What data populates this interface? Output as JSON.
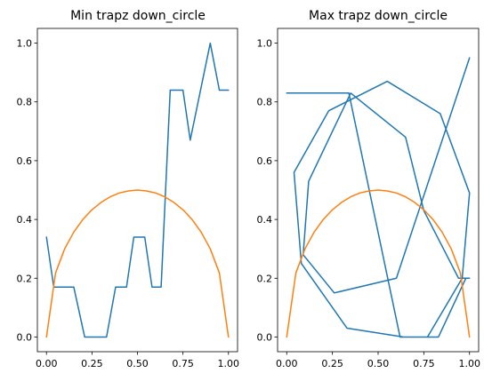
{
  "chart_data": [
    {
      "type": "line",
      "title": "Min trapz down_circle",
      "xlabel": "",
      "ylabel": "",
      "xlim": [
        -0.05,
        1.05
      ],
      "ylim": [
        -0.05,
        1.05
      ],
      "xticks": [
        "0.00",
        "0.25",
        "0.50",
        "0.75",
        "1.00"
      ],
      "yticks": [
        "0.0",
        "0.2",
        "0.4",
        "0.6",
        "0.8",
        "1.0"
      ],
      "grid": false,
      "series": [
        {
          "color": "#1f77b4",
          "x": [
            0.0,
            0.04,
            0.15,
            0.21,
            0.33,
            0.38,
            0.44,
            0.48,
            0.54,
            0.58,
            0.63,
            0.68,
            0.69,
            0.75,
            0.79,
            0.9,
            0.95,
            1.0
          ],
          "y": [
            0.34,
            0.17,
            0.17,
            0.0,
            0.0,
            0.17,
            0.17,
            0.34,
            0.34,
            0.17,
            0.17,
            0.84,
            0.84,
            0.84,
            0.67,
            1.0,
            0.84,
            0.84
          ]
        },
        {
          "color": "#ff7f0e",
          "x": [
            0.0,
            0.05,
            0.1,
            0.15,
            0.2,
            0.25,
            0.3,
            0.35,
            0.4,
            0.45,
            0.5,
            0.55,
            0.6,
            0.65,
            0.7,
            0.75,
            0.8,
            0.85,
            0.9,
            0.95,
            1.0
          ],
          "y": [
            0.0,
            0.218,
            0.3,
            0.357,
            0.4,
            0.433,
            0.458,
            0.477,
            0.49,
            0.497,
            0.5,
            0.497,
            0.49,
            0.477,
            0.458,
            0.433,
            0.4,
            0.357,
            0.3,
            0.218,
            0.0
          ]
        }
      ]
    },
    {
      "type": "line",
      "title": "Max trapz down_circle",
      "xlabel": "",
      "ylabel": "",
      "xlim": [
        -0.05,
        1.05
      ],
      "ylim": [
        -0.05,
        1.05
      ],
      "xticks": [
        "0.00",
        "0.25",
        "0.50",
        "0.75",
        "1.00"
      ],
      "yticks": [
        "0.0",
        "0.2",
        "0.4",
        "0.6",
        "0.8",
        "1.0"
      ],
      "grid": false,
      "series": [
        {
          "color": "#1f77b4",
          "x": [
            0.0,
            0.34,
            0.62,
            0.77,
            0.96,
            1.0,
            0.84,
            0.55,
            0.23,
            0.04,
            0.08,
            0.33,
            0.64,
            0.83,
            0.98,
            1.0,
            0.94,
            0.75,
            0.65,
            0.35,
            0.12,
            0.09,
            0.26,
            0.6,
            1.0
          ],
          "y": [
            0.83,
            0.83,
            0.0,
            0.0,
            0.2,
            0.49,
            0.76,
            0.87,
            0.77,
            0.56,
            0.25,
            0.03,
            0.0,
            0.0,
            0.2,
            0.2,
            0.2,
            0.43,
            0.68,
            0.83,
            0.53,
            0.28,
            0.15,
            0.2,
            0.95
          ]
        },
        {
          "color": "#ff7f0e",
          "x": [
            0.0,
            0.05,
            0.1,
            0.15,
            0.2,
            0.25,
            0.3,
            0.35,
            0.4,
            0.45,
            0.5,
            0.55,
            0.6,
            0.65,
            0.7,
            0.75,
            0.8,
            0.85,
            0.9,
            0.95,
            1.0
          ],
          "y": [
            0.0,
            0.218,
            0.3,
            0.357,
            0.4,
            0.433,
            0.458,
            0.477,
            0.49,
            0.497,
            0.5,
            0.497,
            0.49,
            0.477,
            0.458,
            0.433,
            0.4,
            0.357,
            0.3,
            0.218,
            0.0
          ]
        }
      ]
    }
  ]
}
